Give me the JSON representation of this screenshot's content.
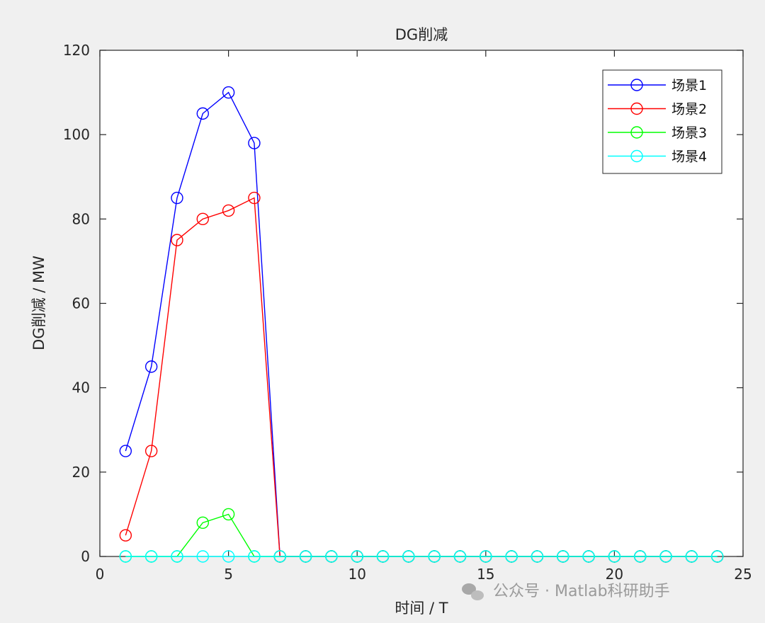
{
  "chart_data": {
    "type": "line",
    "title": "DG削减",
    "xlabel": "时间 / T",
    "ylabel": "DG削减 / MW",
    "xlim": [
      0,
      25
    ],
    "ylim": [
      0,
      120
    ],
    "xticks": [
      0,
      5,
      10,
      15,
      20,
      25
    ],
    "yticks": [
      0,
      20,
      40,
      60,
      80,
      100,
      120
    ],
    "x": [
      1,
      2,
      3,
      4,
      5,
      6,
      7,
      8,
      9,
      10,
      11,
      12,
      13,
      14,
      15,
      16,
      17,
      18,
      19,
      20,
      21,
      22,
      23,
      24
    ],
    "grid": false,
    "legend_position": "top-right",
    "marker": "circle",
    "series": [
      {
        "name": "场景1",
        "color": "#0000ff",
        "values": [
          25,
          45,
          85,
          105,
          110,
          98,
          0,
          0,
          0,
          0,
          0,
          0,
          0,
          0,
          0,
          0,
          0,
          0,
          0,
          0,
          0,
          0,
          0,
          0
        ]
      },
      {
        "name": "场景2",
        "color": "#ff0000",
        "values": [
          5,
          25,
          75,
          80,
          82,
          85,
          0,
          0,
          0,
          0,
          0,
          0,
          0,
          0,
          0,
          0,
          0,
          0,
          0,
          0,
          0,
          0,
          0,
          0
        ]
      },
      {
        "name": "场景3",
        "color": "#00ff00",
        "values": [
          0,
          0,
          0,
          8,
          10,
          0,
          0,
          0,
          0,
          0,
          0,
          0,
          0,
          0,
          0,
          0,
          0,
          0,
          0,
          0,
          0,
          0,
          0,
          0
        ]
      },
      {
        "name": "场景4",
        "color": "#00ffff",
        "values": [
          0,
          0,
          0,
          0,
          0,
          0,
          0,
          0,
          0,
          0,
          0,
          0,
          0,
          0,
          0,
          0,
          0,
          0,
          0,
          0,
          0,
          0,
          0,
          0
        ]
      }
    ]
  },
  "watermark": {
    "text": "公众号 · Matlab科研助手",
    "icon": "wechat-icon"
  }
}
